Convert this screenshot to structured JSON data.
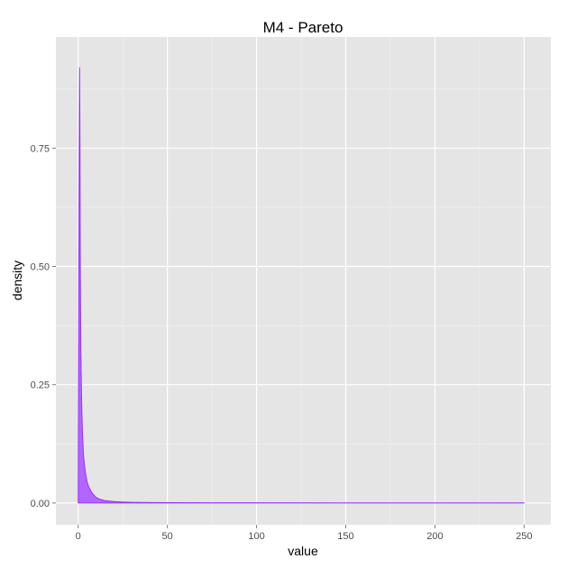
{
  "chart_data": {
    "type": "area",
    "title": "M4 - Pareto",
    "xlabel": "value",
    "ylabel": "density",
    "xlim": [
      -12.5,
      265
    ],
    "ylim": [
      -0.046,
      0.985
    ],
    "x_ticks": [
      0,
      50,
      100,
      150,
      200,
      250
    ],
    "x_tick_labels": [
      "0",
      "50",
      "100",
      "150",
      "200",
      "250"
    ],
    "y_ticks": [
      0,
      0.25,
      0.5,
      0.75
    ],
    "y_tick_labels": [
      "0.00",
      "0.25",
      "0.50",
      "0.75"
    ],
    "x_minor_ticks": [
      25,
      75,
      125,
      175,
      225
    ],
    "y_minor_ticks": [
      0.125,
      0.375,
      0.625,
      0.875
    ],
    "grid": true,
    "series": [
      {
        "x": [
          0,
          0.5,
          0.8,
          1,
          1.2,
          1.5,
          2,
          2.5,
          3,
          4,
          5,
          6,
          8,
          10,
          12,
          15,
          20,
          25,
          30,
          40,
          50,
          75,
          100,
          150,
          200,
          250
        ],
        "values": [
          0.0,
          0.69,
          0.92,
          0.75,
          0.5,
          0.32,
          0.2,
          0.14,
          0.1,
          0.065,
          0.045,
          0.033,
          0.02,
          0.012,
          0.008,
          0.005,
          0.003,
          0.002,
          0.0015,
          0.001,
          0.0008,
          0.0005,
          0.0004,
          0.0003,
          0.0002,
          0.0001
        ]
      }
    ],
    "colors": {
      "fill": "#b266ff",
      "stroke": "#9933ff",
      "panel_background": "#e5e5e5",
      "major_grid": "#ffffff",
      "minor_grid": "#f2f2f2",
      "tick_text": "#4d4d4d"
    }
  }
}
